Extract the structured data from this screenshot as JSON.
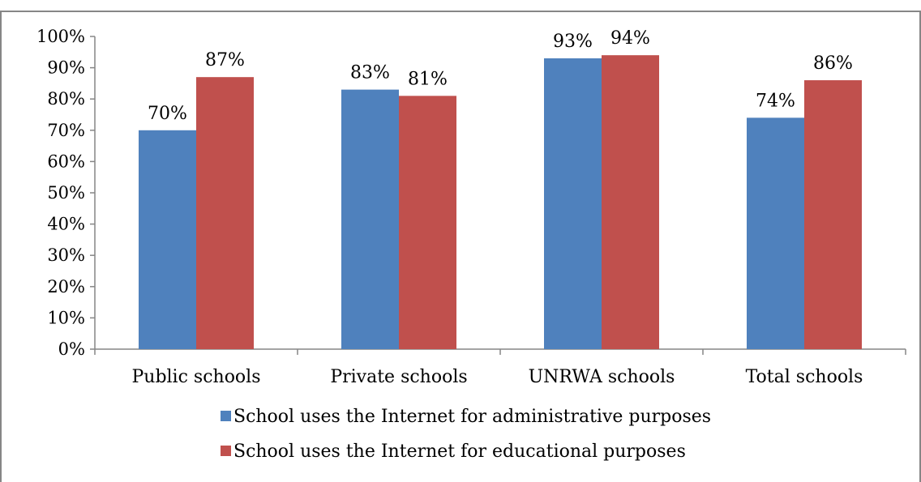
{
  "chart_data": {
    "type": "bar",
    "categories": [
      "Public schools",
      "Private schools",
      "UNRWA schools",
      "Total schools"
    ],
    "series": [
      {
        "name": "School uses the Internet for administrative purposes",
        "values": [
          70,
          83,
          93,
          74
        ],
        "labels": [
          "70%",
          "83%",
          "93%",
          "74%"
        ],
        "color": "#4F81BD"
      },
      {
        "name": "School uses the Internet for educational purposes",
        "values": [
          87,
          81,
          94,
          86
        ],
        "labels": [
          "87%",
          "81%",
          "94%",
          "86%"
        ],
        "color": "#C0504D"
      }
    ],
    "ylim": [
      0,
      100
    ],
    "yticks": [
      "0%",
      "10%",
      "20%",
      "30%",
      "40%",
      "50%",
      "60%",
      "70%",
      "80%",
      "90%",
      "100%"
    ],
    "grid": false,
    "legend_position": "bottom",
    "title": "",
    "xlabel": "",
    "ylabel": ""
  },
  "colors": {
    "axis": "#868686",
    "frame": "#868686"
  }
}
